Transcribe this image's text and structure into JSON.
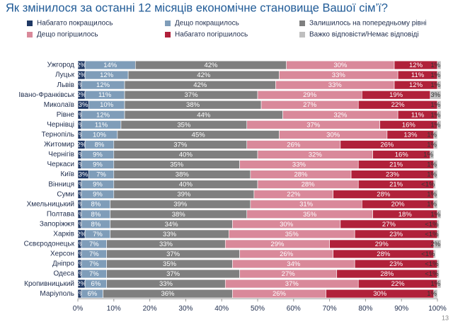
{
  "chart_data": {
    "type": "stacked_bar_horizontal",
    "title": "Як змінилося за останні 12 місяців економічне становище Вашої сім’ї?",
    "categories": [
      "Ужгород",
      "Луцьк",
      "Львів",
      "Івано-Франківськ",
      "Миколаїв",
      "Рівне",
      "Чернівці",
      "Тернопіль",
      "Житомир",
      "Чернігів",
      "Черкаси",
      "Київ",
      "Вінниця",
      "Суми",
      "Хмельницький",
      "Полтава",
      "Запоріжжя",
      "Харків",
      "Сєвєродонецьк",
      "Херсон",
      "Дніпро",
      "Одеса",
      "Кропивницький",
      "Маріуполь"
    ],
    "series": [
      {
        "name": "Набагато покращилось",
        "color": "#1f3864",
        "values": [
          2,
          2,
          1,
          2,
          3,
          1,
          1,
          1,
          2,
          1,
          1,
          3,
          1,
          1,
          1,
          1,
          1,
          2,
          1,
          1,
          1,
          1,
          2,
          1
        ],
        "value_labels": [
          "2%",
          "2%",
          "1%",
          "2%",
          "3%",
          "1%",
          "1%",
          "1%",
          "2%",
          "1%",
          "1%",
          "3%",
          "1%",
          "1%",
          "1%",
          "1%",
          "1%",
          "2%",
          "1%",
          "1%",
          "1%",
          "1%",
          "2%",
          "1%"
        ]
      },
      {
        "name": "Дещо покращилось",
        "color": "#7f9db9",
        "values": [
          14,
          12,
          12,
          11,
          10,
          12,
          11,
          10,
          8,
          9,
          9,
          7,
          9,
          9,
          8,
          8,
          8,
          7,
          7,
          7,
          7,
          7,
          6,
          6
        ],
        "value_labels": [
          "14%",
          "12%",
          "12%",
          "11%",
          "10%",
          "12%",
          "11%",
          "10%",
          "8%",
          "9%",
          "9%",
          "7%",
          "9%",
          "9%",
          "8%",
          "8%",
          "8%",
          "7%",
          "7%",
          "7%",
          "7%",
          "7%",
          "6%",
          "6%"
        ]
      },
      {
        "name": "Залишилось на попередньому рівні",
        "color": "#7f7f7f",
        "values": [
          42,
          42,
          42,
          37,
          38,
          44,
          35,
          45,
          37,
          40,
          35,
          38,
          40,
          39,
          39,
          38,
          34,
          33,
          33,
          37,
          35,
          37,
          33,
          36
        ],
        "value_labels": [
          "42%",
          "42%",
          "42%",
          "37%",
          "38%",
          "44%",
          "35%",
          "45%",
          "37%",
          "40%",
          "35%",
          "38%",
          "40%",
          "39%",
          "39%",
          "38%",
          "34%",
          "33%",
          "33%",
          "37%",
          "35%",
          "37%",
          "33%",
          "36%"
        ]
      },
      {
        "name": "Дещо погіршилось",
        "color": "#d9899a",
        "values": [
          30,
          33,
          33,
          29,
          27,
          32,
          37,
          30,
          26,
          32,
          33,
          28,
          28,
          22,
          31,
          35,
          30,
          35,
          29,
          26,
          34,
          27,
          37,
          26
        ],
        "value_labels": [
          "30%",
          "33%",
          "33%",
          "29%",
          "27%",
          "32%",
          "37%",
          "30%",
          "26%",
          "32%",
          "33%",
          "28%",
          "28%",
          "22%",
          "31%",
          "35%",
          "30%",
          "35%",
          "29%",
          "26%",
          "34%",
          "27%",
          "37%",
          "26%"
        ]
      },
      {
        "name": "Набагато погіршилось",
        "color": "#b0213a",
        "values": [
          12,
          11,
          12,
          19,
          22,
          11,
          16,
          13,
          26,
          16,
          21,
          23,
          21,
          28,
          20,
          18,
          27,
          23,
          29,
          28,
          23,
          28,
          22,
          30
        ],
        "value_labels": [
          "12%",
          "11%",
          "12%",
          "19%",
          "22%",
          "11%",
          "16%",
          "13%",
          "26%",
          "16%",
          "21%",
          "23%",
          "21%",
          "28%",
          "20%",
          "18%",
          "27%",
          "23%",
          "29%",
          "28%",
          "23%",
          "28%",
          "22%",
          "30%"
        ]
      },
      {
        "name": "Важко відповісти/Немає відповіді",
        "color": "#bfbfbf",
        "values": [
          1,
          1,
          1,
          3,
          1,
          1,
          1,
          1,
          1,
          1,
          1,
          1,
          0.5,
          1,
          1,
          1,
          0.5,
          0.5,
          2,
          0.5,
          0.5,
          0.5,
          1,
          1
        ],
        "value_labels": [
          "1%",
          "1%",
          "1%",
          "3%",
          "1%",
          "1%",
          "1%",
          "1%",
          "1%",
          "1%",
          "1%",
          "1%",
          "<1%",
          "1%",
          "1%",
          "1%",
          "<1%",
          "<1%",
          "2%",
          "<1%",
          "<1%",
          "<1%",
          "1%",
          "1%"
        ]
      }
    ],
    "xlim": [
      0,
      100
    ],
    "xticks": [
      {
        "value": 0,
        "label": "0%"
      },
      {
        "value": 10,
        "label": "10%"
      },
      {
        "value": 20,
        "label": "20%"
      },
      {
        "value": 30,
        "label": "30%"
      },
      {
        "value": 40,
        "label": "40%"
      },
      {
        "value": 50,
        "label": "50%"
      },
      {
        "value": 60,
        "label": "60%"
      },
      {
        "value": 70,
        "label": "70%"
      },
      {
        "value": 80,
        "label": "80%"
      },
      {
        "value": 90,
        "label": "90%"
      },
      {
        "value": 100,
        "label": "100%"
      }
    ]
  },
  "page_number": "13"
}
